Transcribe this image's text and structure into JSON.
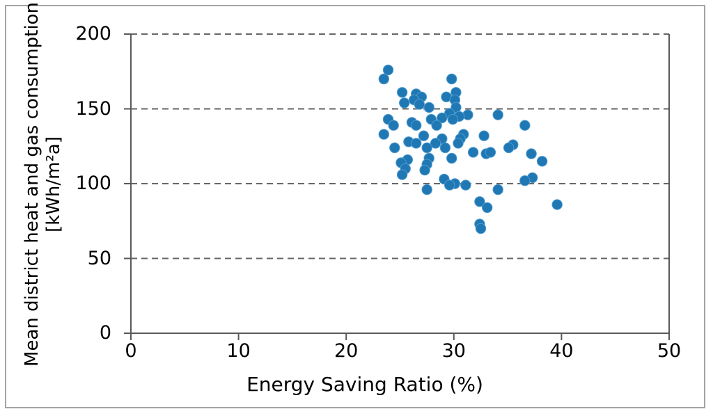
{
  "figure": {
    "background": "#FFFFFF",
    "border_color": "#A3A3A3"
  },
  "chart_data": {
    "type": "scatter",
    "title": "",
    "xlabel": "Energy Saving Ratio (%)",
    "ylabel_line1": "Mean district heat and gas consumption",
    "ylabel_line2": "[kWh/m²a]",
    "xlim": [
      0,
      50
    ],
    "ylim": [
      0,
      200
    ],
    "xticks": [
      0,
      10,
      20,
      30,
      40,
      50
    ],
    "yticks": [
      0,
      50,
      100,
      150,
      200
    ],
    "grid": "horizontal-dashed",
    "legend_position": "none",
    "axis_color": "#595959",
    "grid_color": "#666666",
    "marker_color": "#1F77B4",
    "marker_edge_color": "#4E9BCD",
    "points": [
      [
        23.9,
        176
      ],
      [
        23.5,
        170
      ],
      [
        29.8,
        170
      ],
      [
        25.2,
        161
      ],
      [
        30.2,
        161
      ],
      [
        26.5,
        160
      ],
      [
        27.0,
        158
      ],
      [
        29.3,
        158
      ],
      [
        26.3,
        156
      ],
      [
        30.1,
        156
      ],
      [
        25.4,
        154
      ],
      [
        26.8,
        153
      ],
      [
        27.7,
        151
      ],
      [
        30.2,
        151
      ],
      [
        29.6,
        147
      ],
      [
        31.3,
        146
      ],
      [
        34.1,
        146
      ],
      [
        30.5,
        145
      ],
      [
        28.9,
        144
      ],
      [
        23.9,
        143
      ],
      [
        27.9,
        143
      ],
      [
        29.9,
        143
      ],
      [
        26.1,
        141
      ],
      [
        24.4,
        139
      ],
      [
        26.5,
        139
      ],
      [
        28.4,
        139
      ],
      [
        36.6,
        139
      ],
      [
        23.5,
        133
      ],
      [
        30.9,
        133
      ],
      [
        27.2,
        132
      ],
      [
        32.8,
        132
      ],
      [
        28.9,
        130
      ],
      [
        30.6,
        130
      ],
      [
        25.8,
        128
      ],
      [
        26.5,
        127
      ],
      [
        28.3,
        127
      ],
      [
        30.4,
        127
      ],
      [
        35.5,
        126
      ],
      [
        24.5,
        124
      ],
      [
        27.5,
        124
      ],
      [
        29.2,
        124
      ],
      [
        35.1,
        124
      ],
      [
        31.8,
        121
      ],
      [
        33.0,
        120
      ],
      [
        33.4,
        121
      ],
      [
        37.2,
        120
      ],
      [
        27.7,
        117
      ],
      [
        29.8,
        117
      ],
      [
        25.7,
        116
      ],
      [
        38.2,
        115
      ],
      [
        25.1,
        114
      ],
      [
        27.5,
        113
      ],
      [
        25.5,
        110
      ],
      [
        27.3,
        109
      ],
      [
        25.2,
        106
      ],
      [
        37.3,
        104
      ],
      [
        29.1,
        103
      ],
      [
        36.6,
        102
      ],
      [
        30.1,
        100
      ],
      [
        29.6,
        99
      ],
      [
        31.1,
        99
      ],
      [
        27.5,
        96
      ],
      [
        34.1,
        96
      ],
      [
        32.4,
        88
      ],
      [
        39.6,
        86
      ],
      [
        33.1,
        84
      ],
      [
        32.4,
        73
      ],
      [
        32.5,
        70
      ]
    ]
  }
}
